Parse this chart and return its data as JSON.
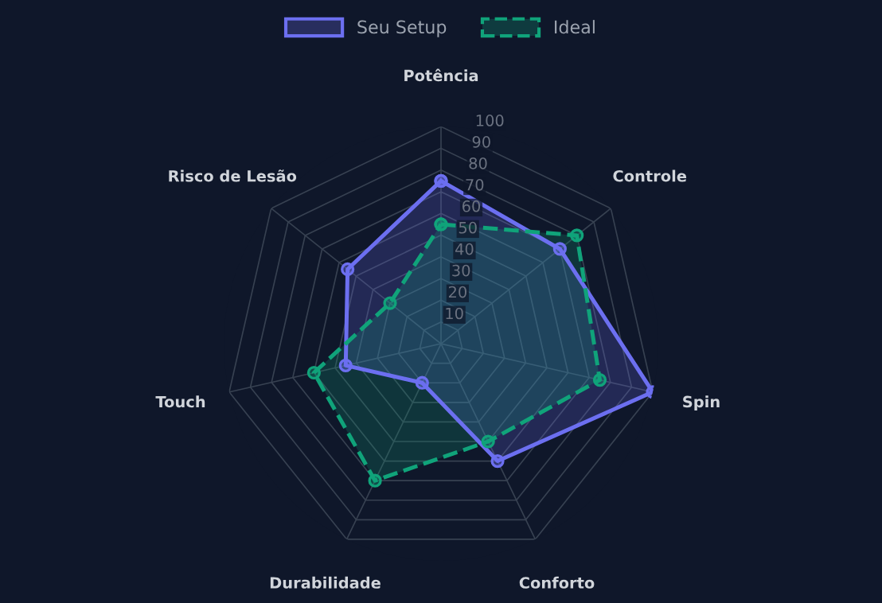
{
  "chart_data": {
    "type": "radar",
    "categories": [
      "Potência",
      "Controle",
      "Spin",
      "Conforto",
      "Durabilidade",
      "Touch",
      "Risco de Lesão"
    ],
    "series": [
      {
        "name": "Seu Setup",
        "color": "#6c6ff0",
        "values": [
          75,
          70,
          100,
          60,
          20,
          45,
          55
        ]
      },
      {
        "name": "Ideal",
        "color": "#10a37a",
        "values": [
          55,
          80,
          75,
          50,
          70,
          60,
          30
        ],
        "line_style": "dashed"
      }
    ],
    "ylim": [
      0,
      100
    ],
    "yticks": [
      10,
      20,
      30,
      40,
      50,
      60,
      70,
      80,
      90,
      100
    ],
    "grid": true,
    "legend": "top",
    "marker": "circle",
    "line_style": "solid"
  }
}
